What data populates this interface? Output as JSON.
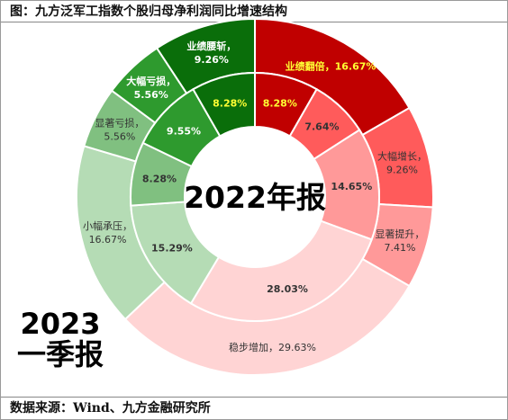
{
  "title": "图：九方泛军工指数个股归母净利润同比增速结构",
  "source": "数据来源：Wind、九方金融研究所",
  "chart_data": {
    "type": "donut",
    "inner_ring": {
      "label": "2022年报",
      "slices": [
        {
          "name": "业绩翻倍",
          "value": 8.28,
          "text": "8.28%",
          "color": "#c00000"
        },
        {
          "name": "大幅增长",
          "value": 7.64,
          "text": "7.64%",
          "color": "#ff5b5b"
        },
        {
          "name": "显著提升",
          "value": 14.65,
          "text": "14.65%",
          "color": "#ff9999"
        },
        {
          "name": "稳步增加",
          "value": 28.03,
          "text": "28.03%",
          "color": "#ffd4d4"
        },
        {
          "name": "小幅承压",
          "value": 15.29,
          "text": "15.29%",
          "color": "#b5dcb5"
        },
        {
          "name": "显著亏损",
          "value": 8.28,
          "text": "8.28%",
          "color": "#80c080"
        },
        {
          "name": "大幅亏损",
          "value": 9.55,
          "text": "9.55%",
          "color": "#2e9a2e"
        },
        {
          "name": "业绩腰斩",
          "value": 8.28,
          "text": "8.28%",
          "color": "#0a6e0a"
        }
      ]
    },
    "outer_ring": {
      "label": "2023一季报",
      "slices": [
        {
          "name": "业绩翻倍",
          "value": 16.67,
          "text": "业绩翻倍，16.67%",
          "color": "#c00000"
        },
        {
          "name": "大幅增长",
          "value": 9.26,
          "text": "大幅增长，9.26%",
          "color": "#ff5b5b"
        },
        {
          "name": "显著提升",
          "value": 7.41,
          "text": "显著提升，7.41%",
          "color": "#ff9999"
        },
        {
          "name": "稳步增加",
          "value": 29.63,
          "text": "稳步增加，29.63%",
          "color": "#ffd4d4"
        },
        {
          "name": "小幅承压",
          "value": 16.67,
          "text": "小幅承压，16.67%",
          "color": "#b5dcb5"
        },
        {
          "name": "显著亏损",
          "value": 5.56,
          "text": "显著亏损，5.56%",
          "color": "#80c080"
        },
        {
          "name": "大幅亏损",
          "value": 5.56,
          "text": "大幅亏损，5.56%",
          "color": "#2e9a2e"
        },
        {
          "name": "业绩腰斩",
          "value": 9.26,
          "text": "业绩腰斩，9.26%",
          "color": "#0a6e0a"
        }
      ]
    },
    "bottom_left_label": [
      "2023",
      "一季报"
    ]
  }
}
